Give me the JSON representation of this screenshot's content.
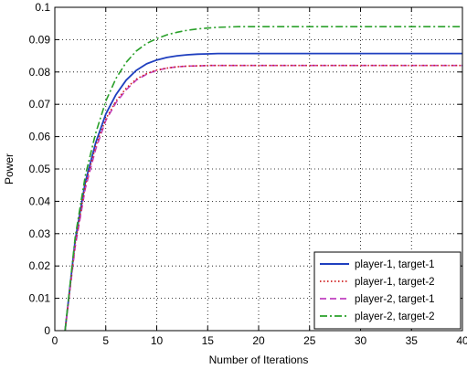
{
  "chart_data": {
    "type": "line",
    "xlabel": "Number of Iterations",
    "ylabel": "Power",
    "xlim": [
      0,
      40
    ],
    "ylim": [
      0,
      0.1
    ],
    "xticks": [
      0,
      5,
      10,
      15,
      20,
      25,
      30,
      35,
      40
    ],
    "yticks": [
      0,
      0.01,
      0.02,
      0.03,
      0.04,
      0.05,
      0.06,
      0.07,
      0.08,
      0.09,
      0.1
    ],
    "xtick_labels": [
      "0",
      "5",
      "10",
      "15",
      "20",
      "25",
      "30",
      "35",
      "40"
    ],
    "ytick_labels": [
      "0",
      "0.01",
      "0.02",
      "0.03",
      "0.04",
      "0.05",
      "0.06",
      "0.07",
      "0.08",
      "0.09",
      "0.1"
    ],
    "grid": true,
    "legend_position": "bottom-right",
    "x": [
      1,
      2,
      3,
      4,
      5,
      6,
      7,
      8,
      9,
      10,
      11,
      12,
      13,
      14,
      15,
      16,
      18,
      20,
      25,
      30,
      35,
      40
    ],
    "series": [
      {
        "name": "player-1, target-1",
        "style": "solid",
        "color": "#1f3fbf",
        "values": [
          0.0,
          0.028,
          0.046,
          0.058,
          0.067,
          0.073,
          0.0775,
          0.0805,
          0.0825,
          0.0837,
          0.0845,
          0.085,
          0.0853,
          0.0855,
          0.0856,
          0.0857,
          0.0857,
          0.0857,
          0.0857,
          0.0857,
          0.0857,
          0.0857
        ]
      },
      {
        "name": "player-1, target-2",
        "style": "dotted",
        "color": "#d02020",
        "values": [
          0.0,
          0.027,
          0.045,
          0.057,
          0.0655,
          0.071,
          0.075,
          0.0778,
          0.0795,
          0.0806,
          0.0812,
          0.0816,
          0.0818,
          0.0819,
          0.082,
          0.082,
          0.082,
          0.082,
          0.082,
          0.082,
          0.082,
          0.082
        ]
      },
      {
        "name": "player-2, target-1",
        "style": "dashed",
        "color": "#c040c0",
        "values": [
          0.0,
          0.026,
          0.044,
          0.056,
          0.065,
          0.0705,
          0.0745,
          0.0775,
          0.0793,
          0.0805,
          0.0812,
          0.0816,
          0.0818,
          0.0819,
          0.082,
          0.082,
          0.082,
          0.082,
          0.082,
          0.082,
          0.082,
          0.082
        ]
      },
      {
        "name": "player-2, target-2",
        "style": "dashdot",
        "color": "#2aa02a",
        "values": [
          0.0,
          0.029,
          0.048,
          0.061,
          0.071,
          0.078,
          0.083,
          0.0865,
          0.0888,
          0.0903,
          0.0915,
          0.0923,
          0.0929,
          0.0933,
          0.0936,
          0.0938,
          0.094,
          0.094,
          0.094,
          0.094,
          0.094,
          0.094
        ]
      }
    ]
  }
}
